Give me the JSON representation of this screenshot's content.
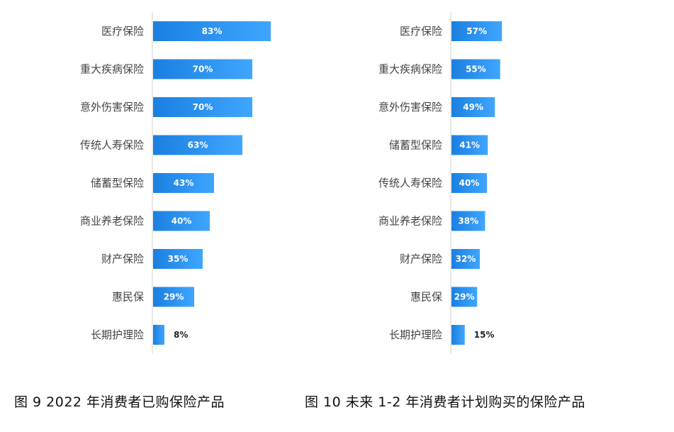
{
  "captions": {
    "left": "图 9   2022 年消费者已购保险产品",
    "right": "图 10  未来 1-2 年消费者计划购买的保险产品"
  },
  "colors": {
    "bar_start": "#1a7fe0",
    "bar_end": "#3fa6ff",
    "axis": "#d9d9d9",
    "category_text": "#444444",
    "value_inside": "#ffffff",
    "value_outside": "#222222"
  },
  "chart_data": [
    {
      "type": "bar",
      "orientation": "horizontal",
      "title": "",
      "categories": [
        "医疗保险",
        "重大疾病保险",
        "意外伤害保险",
        "传统人寿保险",
        "储蓄型保险",
        "商业养老保险",
        "财产保险",
        "惠民保",
        "长期护理险"
      ],
      "values": [
        83,
        70,
        70,
        63,
        43,
        40,
        35,
        29,
        8
      ],
      "value_labels": [
        "83%",
        "70%",
        "70%",
        "63%",
        "43%",
        "40%",
        "35%",
        "29%",
        "8%"
      ],
      "unit": "%",
      "xlim": [
        0,
        100
      ],
      "grid": false,
      "legend": "none"
    },
    {
      "type": "bar",
      "orientation": "horizontal",
      "title": "",
      "categories": [
        "医疗保险",
        "重大疾病保险",
        "意外伤害保险",
        "储蓄型保险",
        "传统人寿保险",
        "商业养老保险",
        "财产保险",
        "惠民保",
        "长期护理险"
      ],
      "values": [
        57,
        55,
        49,
        41,
        40,
        38,
        32,
        29,
        15
      ],
      "value_labels": [
        "57%",
        "55%",
        "49%",
        "41%",
        "40%",
        "38%",
        "32%",
        "29%",
        "15%"
      ],
      "unit": "%",
      "xlim": [
        0,
        100
      ],
      "grid": false,
      "legend": "none"
    }
  ]
}
